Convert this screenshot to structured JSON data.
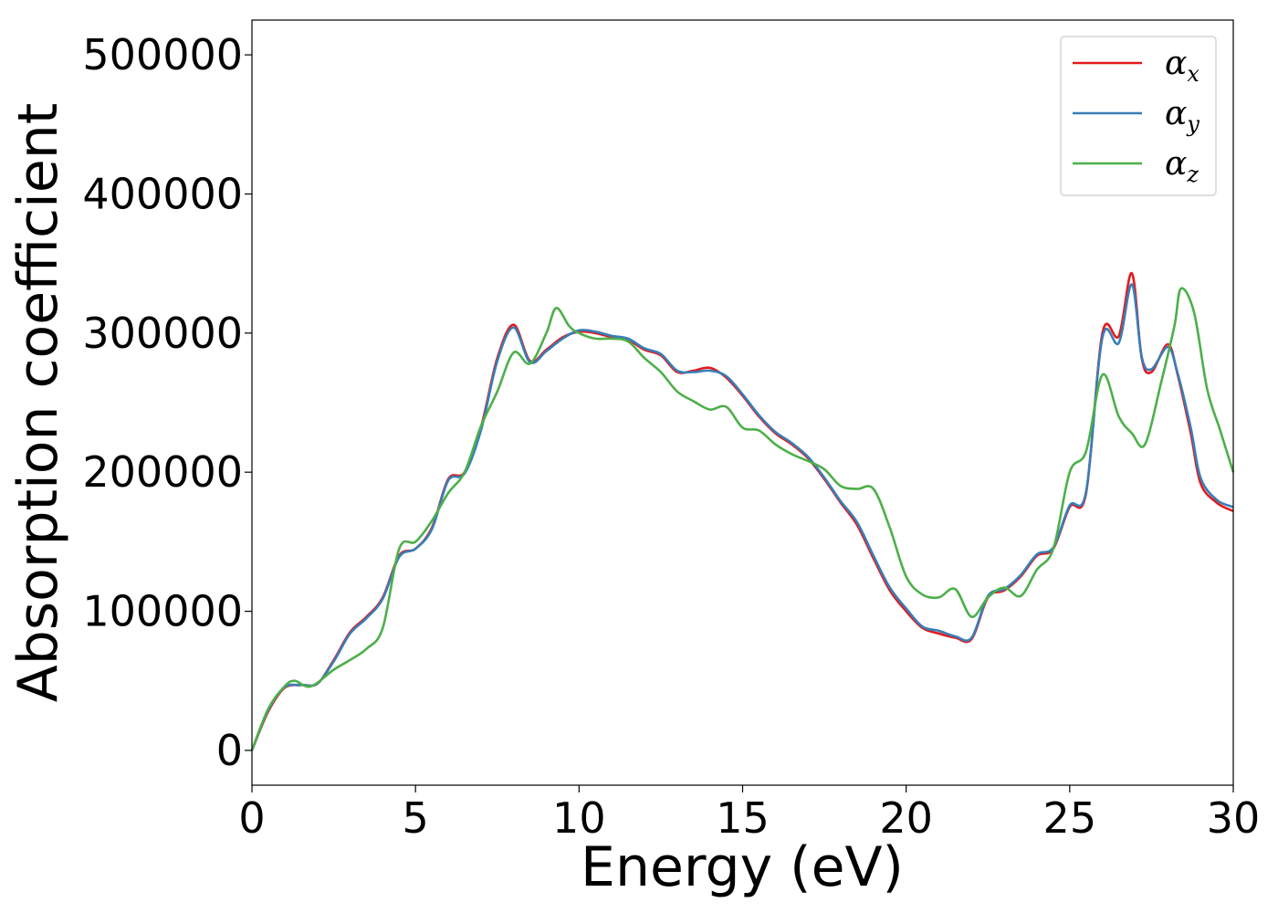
{
  "chart_data": {
    "type": "line",
    "title": "",
    "xlabel": "Energy (eV)",
    "ylabel": "Absorption coefficient",
    "xlim": [
      0,
      30
    ],
    "ylim": [
      -25000,
      525000
    ],
    "xticks": [
      0,
      5,
      10,
      15,
      20,
      25,
      30
    ],
    "yticks": [
      0,
      100000,
      200000,
      300000,
      400000,
      500000
    ],
    "grid": false,
    "legend_position": "top-right",
    "legend_symbol": "α",
    "series": [
      {
        "name": "αx",
        "subscript": "x",
        "color": "#e41a1c",
        "x": [
          0,
          0.5,
          1.0,
          1.5,
          2.0,
          2.5,
          3.0,
          3.5,
          4.0,
          4.5,
          5.0,
          5.5,
          6.0,
          6.5,
          7.0,
          7.5,
          8.0,
          8.5,
          9.0,
          9.5,
          10.0,
          10.5,
          11.0,
          11.5,
          12.0,
          12.5,
          13.0,
          13.5,
          14.0,
          14.5,
          15.0,
          15.5,
          16.0,
          16.5,
          17.0,
          17.5,
          18.0,
          18.5,
          19.0,
          19.5,
          20.0,
          20.5,
          21.0,
          21.5,
          22.0,
          22.5,
          23.0,
          23.5,
          24.0,
          24.5,
          25.0,
          25.5,
          26.0,
          26.5,
          26.9,
          27.2,
          27.5,
          28.0,
          28.3,
          28.7,
          29.0,
          29.5,
          30.0
        ],
        "y": [
          0,
          28000,
          45000,
          47000,
          48000,
          65000,
          85000,
          96000,
          110000,
          140000,
          145000,
          160000,
          195000,
          200000,
          232000,
          282000,
          306000,
          280000,
          288000,
          297000,
          301000,
          300000,
          297000,
          295000,
          288000,
          284000,
          272000,
          273000,
          275000,
          268000,
          255000,
          240000,
          228000,
          220000,
          210000,
          195000,
          178000,
          162000,
          138000,
          115000,
          100000,
          88000,
          84000,
          81000,
          80000,
          110000,
          115000,
          125000,
          140000,
          145000,
          175000,
          185000,
          300000,
          298000,
          343000,
          282000,
          272000,
          292000,
          270000,
          228000,
          192000,
          178000,
          172000
        ]
      },
      {
        "name": "αy",
        "subscript": "y",
        "color": "#377eb8",
        "x": [
          0,
          0.5,
          1.0,
          1.5,
          2.0,
          2.5,
          3.0,
          3.5,
          4.0,
          4.5,
          5.0,
          5.5,
          6.0,
          6.5,
          7.0,
          7.5,
          8.0,
          8.5,
          9.0,
          9.5,
          10.0,
          10.5,
          11.0,
          11.5,
          12.0,
          12.5,
          13.0,
          13.5,
          14.0,
          14.5,
          15.0,
          15.5,
          16.0,
          16.5,
          17.0,
          17.5,
          18.0,
          18.5,
          19.0,
          19.5,
          20.0,
          20.5,
          21.0,
          21.5,
          22.0,
          22.5,
          23.0,
          23.5,
          24.0,
          24.5,
          25.0,
          25.5,
          26.0,
          26.5,
          26.9,
          27.2,
          27.5,
          28.0,
          28.3,
          28.7,
          29.0,
          29.5,
          30.0
        ],
        "y": [
          0,
          29000,
          45500,
          47000,
          48000,
          64000,
          84000,
          95000,
          109000,
          139000,
          145000,
          159000,
          194000,
          199000,
          230000,
          280000,
          304000,
          279000,
          287000,
          296000,
          302000,
          301000,
          298000,
          296000,
          289000,
          285000,
          273000,
          272000,
          273000,
          269000,
          256000,
          241000,
          229000,
          221000,
          211000,
          196000,
          179000,
          164000,
          140000,
          117000,
          102000,
          89000,
          86000,
          82000,
          81000,
          111000,
          116000,
          126000,
          141000,
          146000,
          176000,
          186000,
          297000,
          293000,
          335000,
          283000,
          274000,
          290000,
          271000,
          232000,
          196000,
          180000,
          175000
        ]
      },
      {
        "name": "αz",
        "subscript": "z",
        "color": "#4daf4a",
        "x": [
          0,
          0.5,
          1.0,
          1.3,
          1.8,
          2.5,
          3.0,
          3.5,
          4.0,
          4.5,
          5.0,
          5.5,
          6.0,
          6.5,
          7.0,
          7.5,
          8.0,
          8.5,
          9.0,
          9.3,
          9.7,
          10.0,
          10.5,
          11.0,
          11.5,
          12.0,
          12.5,
          13.0,
          13.5,
          14.0,
          14.5,
          15.0,
          15.5,
          16.0,
          16.5,
          17.0,
          17.5,
          18.0,
          18.5,
          19.0,
          19.5,
          20.0,
          20.5,
          21.0,
          21.5,
          22.0,
          22.5,
          23.0,
          23.5,
          24.0,
          24.5,
          25.0,
          25.5,
          26.0,
          26.5,
          26.9,
          27.3,
          27.8,
          28.2,
          28.4,
          28.8,
          29.2,
          29.6,
          30.0
        ],
        "y": [
          0,
          30000,
          46000,
          50000,
          46000,
          58000,
          65000,
          73000,
          88000,
          145000,
          150000,
          165000,
          185000,
          200000,
          233000,
          258000,
          286000,
          278000,
          300000,
          318000,
          305000,
          300000,
          296000,
          296000,
          294000,
          282000,
          272000,
          258000,
          251000,
          245000,
          247000,
          232000,
          230000,
          220000,
          213000,
          208000,
          202000,
          190000,
          188000,
          188000,
          160000,
          125000,
          112000,
          110000,
          116000,
          96000,
          110000,
          117000,
          111000,
          130000,
          145000,
          200000,
          215000,
          270000,
          240000,
          228000,
          220000,
          265000,
          305000,
          332000,
          315000,
          260000,
          230000,
          200000
        ]
      }
    ]
  }
}
